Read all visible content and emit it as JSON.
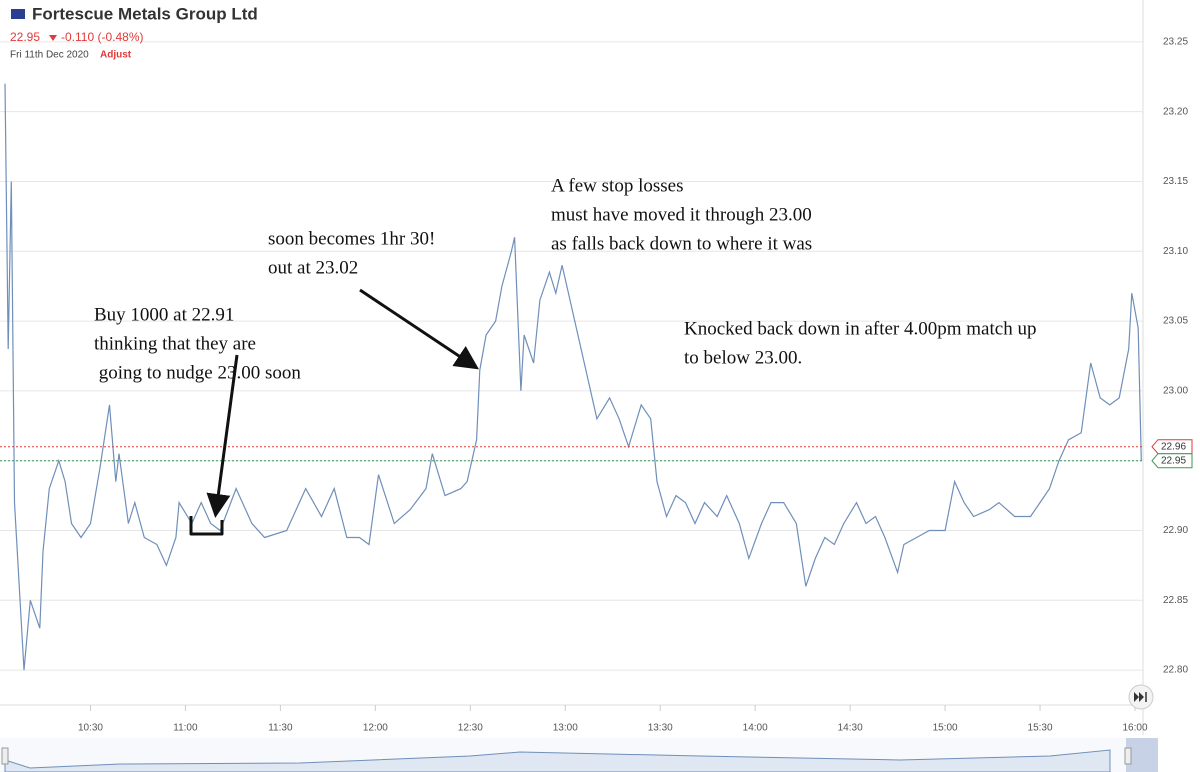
{
  "chart_data": {
    "type": "line",
    "title": "Fortescue Metals Group Ltd",
    "last_price": "22.95",
    "change": "-0.110 (-0.48%)",
    "date": "Fri 11th Dec 2020",
    "adjust": "Adjust",
    "color": "#6f8fba",
    "grid": true,
    "x": [
      "10:03",
      "10:04",
      "10:05",
      "10:06",
      "10:09",
      "10:11",
      "10:14",
      "10:15",
      "10:17",
      "10:20",
      "10:22",
      "10:24",
      "10:27",
      "10:30",
      "10:33",
      "10:36",
      "10:38",
      "10:39",
      "10:42",
      "10:44",
      "10:47",
      "10:51",
      "10:54",
      "10:57",
      "10:58",
      "11:02",
      "11:05",
      "11:08",
      "11:11",
      "11:16",
      "11:21",
      "11:25",
      "11:32",
      "11:38",
      "11:43",
      "11:47",
      "11:51",
      "11:55",
      "11:58",
      "12:01",
      "12:06",
      "12:11",
      "12:16",
      "12:18",
      "12:22",
      "12:27",
      "12:29",
      "12:32",
      "12:33",
      "12:35",
      "12:38",
      "12:40",
      "12:43",
      "12:44",
      "12:46",
      "12:47",
      "12:50",
      "12:52",
      "12:55",
      "12:57",
      "12:59",
      "13:02",
      "13:05",
      "13:08",
      "13:10",
      "13:14",
      "13:17",
      "13:20",
      "13:24",
      "13:27",
      "13:29",
      "13:32",
      "13:35",
      "13:38",
      "13:41",
      "13:44",
      "13:48",
      "13:51",
      "13:55",
      "13:58",
      "14:02",
      "14:05",
      "14:09",
      "14:13",
      "14:16",
      "14:19",
      "14:22",
      "14:25",
      "14:28",
      "14:32",
      "14:35",
      "14:38",
      "14:41",
      "14:45",
      "14:47",
      "14:51",
      "14:55",
      "15:00",
      "15:03",
      "15:06",
      "15:09",
      "15:14",
      "15:17",
      "15:22",
      "15:27",
      "15:30",
      "15:33",
      "15:36",
      "15:39",
      "15:43",
      "15:46",
      "15:49",
      "15:52",
      "15:55",
      "15:58",
      "15:59",
      "16:01",
      "16:02"
    ],
    "values": [
      23.22,
      23.03,
      23.15,
      22.92,
      22.8,
      22.85,
      22.83,
      22.885,
      22.93,
      22.95,
      22.935,
      22.905,
      22.895,
      22.905,
      22.945,
      22.99,
      22.935,
      22.955,
      22.905,
      22.92,
      22.895,
      22.89,
      22.875,
      22.895,
      22.92,
      22.905,
      22.92,
      22.905,
      22.9,
      22.93,
      22.905,
      22.895,
      22.9,
      22.93,
      22.91,
      22.93,
      22.895,
      22.895,
      22.89,
      22.94,
      22.905,
      22.915,
      22.93,
      22.955,
      22.925,
      22.93,
      22.935,
      22.965,
      23.015,
      23.04,
      23.05,
      23.075,
      23.1,
      23.11,
      23.0,
      23.04,
      23.02,
      23.065,
      23.085,
      23.07,
      23.09,
      23.06,
      23.03,
      23.0,
      22.98,
      22.995,
      22.98,
      22.96,
      22.99,
      22.98,
      22.935,
      22.91,
      22.925,
      22.92,
      22.905,
      22.92,
      22.91,
      22.925,
      22.905,
      22.88,
      22.905,
      22.92,
      22.92,
      22.905,
      22.86,
      22.88,
      22.895,
      22.89,
      22.905,
      22.92,
      22.905,
      22.91,
      22.895,
      22.87,
      22.89,
      22.895,
      22.9,
      22.9,
      22.935,
      22.92,
      22.91,
      22.915,
      22.92,
      22.91,
      22.91,
      22.92,
      22.93,
      22.95,
      22.965,
      22.97,
      23.02,
      22.995,
      22.99,
      22.995,
      23.03,
      23.07,
      23.045,
      22.95
    ],
    "xlim": [
      "10:03",
      "16:03"
    ],
    "xticks": [
      "10:30",
      "11:00",
      "11:30",
      "12:00",
      "12:30",
      "13:00",
      "13:30",
      "14:00",
      "14:30",
      "15:00",
      "15:30",
      "16:00"
    ],
    "ylim": [
      22.775,
      23.28
    ],
    "yticks": [
      {
        "value": 22.8,
        "label": "22.80"
      },
      22.85,
      {
        "value": 22.9,
        "label": "22.90"
      },
      22.95,
      {
        "value": 23.0,
        "label": "23.00"
      },
      23.05,
      {
        "value": 23.1,
        "label": "23.10"
      },
      23.15,
      {
        "value": 23.2,
        "label": "23.20"
      },
      23.25
    ],
    "price_lines": [
      {
        "value": 22.96,
        "color": "#e03a3a"
      },
      {
        "value": 22.95,
        "color": "#3c9a55"
      }
    ],
    "annotations": [
      {
        "lines": [
          "Buy 1000 at 22.91",
          "thinking that they are",
          " going to nudge 23.00 soon"
        ]
      },
      {
        "lines": [
          "soon becomes 1hr 30!",
          "out at 23.02"
        ]
      },
      {
        "lines": [
          "A few stop losses",
          "must have moved it through 23.00",
          "as falls back down to where it was"
        ]
      },
      {
        "lines": [
          "Knocked back down in after 4.00pm match up",
          "to below 23.00."
        ]
      }
    ]
  }
}
